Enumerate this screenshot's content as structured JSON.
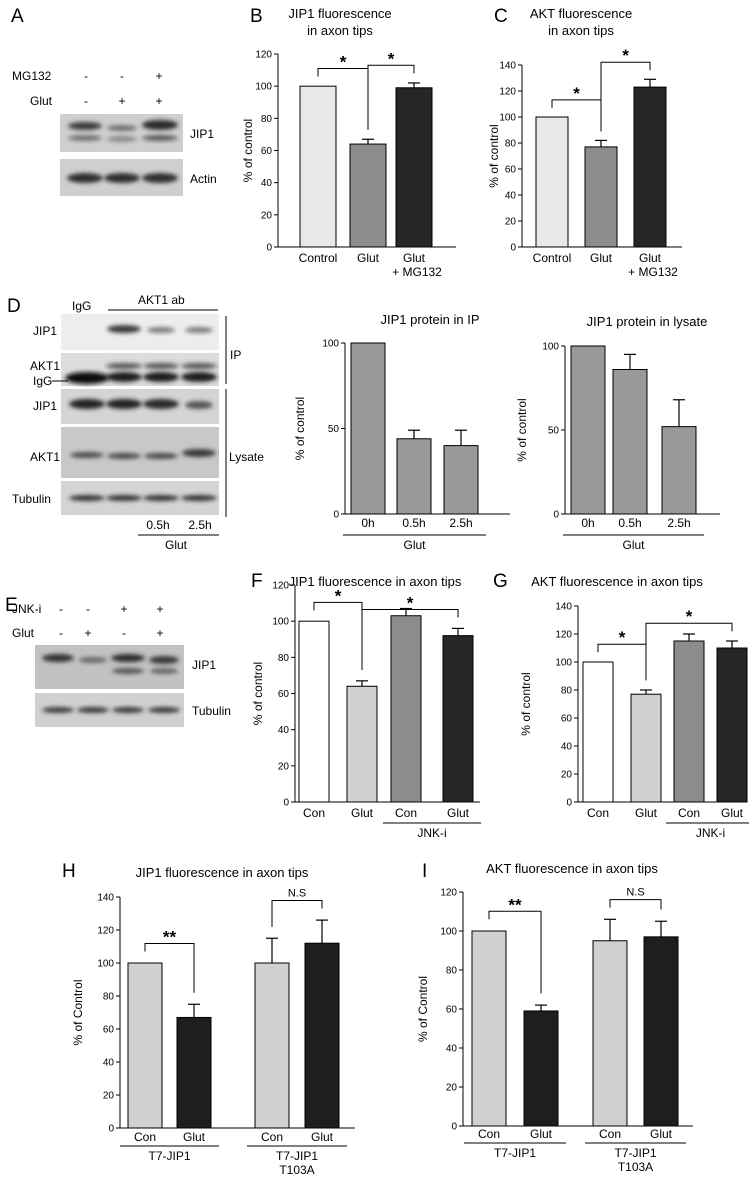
{
  "panel_letters": {
    "A": "A",
    "B": "B",
    "C": "C",
    "D": "D",
    "E": "E",
    "F": "F",
    "G": "G",
    "H": "H",
    "I": "I"
  },
  "blot_A": {
    "row_labels": [
      "MG132",
      "Glut"
    ],
    "signs": [
      [
        "-",
        "-",
        "+"
      ],
      [
        "-",
        "+",
        "+"
      ]
    ],
    "band_labels": [
      "JIP1",
      "Actin"
    ]
  },
  "blot_D": {
    "top_labels": [
      "IgG",
      "AKT1 ab"
    ],
    "left_labels": [
      "JIP1",
      "AKT1",
      "IgG",
      "JIP1",
      "AKT1",
      "Tubulin"
    ],
    "group_labels": [
      "IP",
      "Lysate"
    ],
    "time_labels": [
      "0.5h",
      "2.5h"
    ],
    "treatment_label": "Glut"
  },
  "blot_E": {
    "row_labels": [
      "JNK-i",
      "Glut"
    ],
    "signs": [
      [
        "-",
        "-",
        "+",
        "+"
      ],
      [
        "-",
        "+",
        "-",
        "+"
      ]
    ],
    "band_labels": [
      "JIP1",
      "Tubulin"
    ]
  },
  "chart_data": [
    {
      "panel": "B",
      "type": "bar",
      "title": [
        "JIP1 fluorescence",
        "in axon tips"
      ],
      "ylabel": "% of control",
      "ylim": [
        0,
        120
      ],
      "yticks": [
        0,
        20,
        40,
        60,
        80,
        100,
        120
      ],
      "categories": [
        "Control",
        "Glut",
        "Glut"
      ],
      "category_sub": [
        "",
        "",
        "+ MG132"
      ],
      "values": [
        100,
        64,
        99
      ],
      "errors": [
        0,
        3,
        3
      ],
      "colors": [
        "#e8e8e8",
        "#8c8c8c",
        "#262626"
      ],
      "sig": [
        {
          "from": 0,
          "to": 1,
          "label": "*"
        },
        {
          "from": 1,
          "to": 2,
          "label": "*"
        }
      ]
    },
    {
      "panel": "C",
      "type": "bar",
      "title": [
        "AKT fluorescence",
        "in axon tips"
      ],
      "ylabel": "% of control",
      "ylim": [
        0,
        140
      ],
      "yticks": [
        0,
        20,
        40,
        60,
        80,
        100,
        120,
        140
      ],
      "categories": [
        "Control",
        "Glut",
        "Glut"
      ],
      "category_sub": [
        "",
        "",
        "+ MG132"
      ],
      "values": [
        100,
        77,
        123
      ],
      "errors": [
        0,
        5,
        6
      ],
      "colors": [
        "#e8e8e8",
        "#8c8c8c",
        "#262626"
      ],
      "sig": [
        {
          "from": 0,
          "to": 1,
          "label": "*"
        },
        {
          "from": 1,
          "to": 2,
          "label": "*"
        }
      ]
    },
    {
      "panel": "D1",
      "type": "bar",
      "title": [
        "JIP1 protein in IP"
      ],
      "ylabel": "% of control",
      "ylim": [
        0,
        100
      ],
      "yticks": [
        0,
        50,
        100
      ],
      "categories": [
        "0h",
        "0.5h",
        "2.5h"
      ],
      "values": [
        100,
        44,
        40
      ],
      "errors": [
        0,
        5,
        9
      ],
      "colors": [
        "#999999",
        "#999999",
        "#999999"
      ],
      "group": {
        "label": "Glut",
        "from": 0,
        "to": 2
      }
    },
    {
      "panel": "D2",
      "type": "bar",
      "title": [
        "JIP1 protein in lysate"
      ],
      "ylabel": "% of control",
      "ylim": [
        0,
        100
      ],
      "yticks": [
        0,
        50,
        100
      ],
      "categories": [
        "0h",
        "0.5h",
        "2.5h"
      ],
      "values": [
        100,
        86,
        52
      ],
      "errors": [
        0,
        9,
        16
      ],
      "colors": [
        "#999999",
        "#999999",
        "#999999"
      ],
      "group": {
        "label": "Glut",
        "from": 0,
        "to": 2
      }
    },
    {
      "panel": "F",
      "type": "bar",
      "title": [
        "JIP1 fluorescence in axon tips"
      ],
      "ylabel": "% of control",
      "ylim": [
        0,
        120
      ],
      "yticks": [
        0,
        20,
        40,
        60,
        80,
        100,
        120
      ],
      "categories": [
        "Con",
        "Glut",
        "Con",
        "Glut"
      ],
      "values": [
        100,
        64,
        103,
        92
      ],
      "errors": [
        0,
        3,
        4,
        4
      ],
      "colors": [
        "#ffffff",
        "#d0d0d0",
        "#8c8c8c",
        "#262626"
      ],
      "sig": [
        {
          "from": 0,
          "to": 1,
          "label": "*"
        },
        {
          "from": 1,
          "to": 3,
          "label": "*"
        }
      ],
      "group": {
        "label": "JNK-i",
        "from": 2,
        "to": 3
      }
    },
    {
      "panel": "G",
      "type": "bar",
      "title": [
        "AKT fluorescence in axon tips"
      ],
      "ylabel": "% of control",
      "ylim": [
        0,
        140
      ],
      "yticks": [
        0,
        20,
        40,
        60,
        80,
        100,
        120,
        140
      ],
      "categories": [
        "Con",
        "Glut",
        "Con",
        "Glut"
      ],
      "values": [
        100,
        77,
        115,
        110
      ],
      "errors": [
        0,
        3,
        5,
        5
      ],
      "colors": [
        "#ffffff",
        "#d0d0d0",
        "#8c8c8c",
        "#262626"
      ],
      "sig": [
        {
          "from": 0,
          "to": 1,
          "label": "*"
        },
        {
          "from": 1,
          "to": 3,
          "label": "*"
        }
      ],
      "group": {
        "label": "JNK-i",
        "from": 2,
        "to": 3
      }
    },
    {
      "panel": "H",
      "type": "bar",
      "title": [
        "JIP1 fluorescence in axon tips"
      ],
      "ylabel": "% of Control",
      "ylim": [
        0,
        140
      ],
      "yticks": [
        0,
        20,
        40,
        60,
        80,
        100,
        120,
        140
      ],
      "categories": [
        "Con",
        "Glut",
        "Con",
        "Glut"
      ],
      "values": [
        100,
        67,
        100,
        112
      ],
      "errors": [
        0,
        8,
        15,
        14
      ],
      "colors": [
        "#d0d0d0",
        "#1e1e1e",
        "#d0d0d0",
        "#1e1e1e"
      ],
      "sig": [
        {
          "from": 0,
          "to": 1,
          "label": "**"
        },
        {
          "from": 2,
          "to": 3,
          "label": "N.S"
        }
      ],
      "groups": [
        {
          "label": [
            "T7-JIP1"
          ],
          "from": 0,
          "to": 1
        },
        {
          "label": [
            "T7-JIP1",
            "T103A"
          ],
          "from": 2,
          "to": 3
        }
      ]
    },
    {
      "panel": "I",
      "type": "bar",
      "title": [
        "AKT fluorescence in axon tips"
      ],
      "ylabel": "% of Control",
      "ylim": [
        0,
        120
      ],
      "yticks": [
        0,
        20,
        40,
        60,
        80,
        100,
        120
      ],
      "categories": [
        "Con",
        "Glut",
        "Con",
        "Glut"
      ],
      "values": [
        100,
        59,
        95,
        97
      ],
      "errors": [
        0,
        3,
        11,
        8
      ],
      "colors": [
        "#d0d0d0",
        "#1e1e1e",
        "#d0d0d0",
        "#1e1e1e"
      ],
      "sig": [
        {
          "from": 0,
          "to": 1,
          "label": "**"
        },
        {
          "from": 2,
          "to": 3,
          "label": "N.S"
        }
      ],
      "groups": [
        {
          "label": [
            "T7-JIP1"
          ],
          "from": 0,
          "to": 1
        },
        {
          "label": [
            "T7-JIP1",
            "T103A"
          ],
          "from": 2,
          "to": 3
        }
      ]
    }
  ]
}
